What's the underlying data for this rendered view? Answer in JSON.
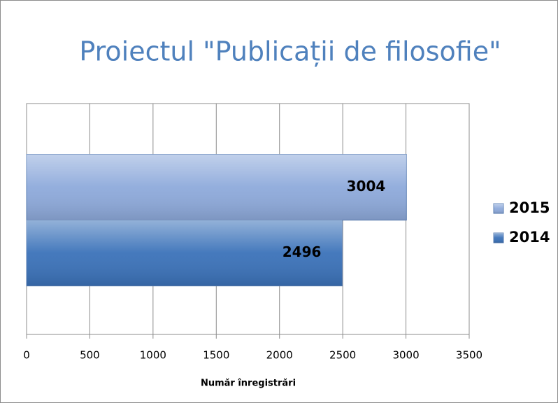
{
  "chart_data": {
    "type": "bar",
    "orientation": "horizontal",
    "title": "Proiectul \"Publicații de filosofie\"",
    "x_label": "Număr înregistrări",
    "categories": [
      null
    ],
    "series": [
      {
        "name": "2015",
        "color": "#8eaadb",
        "values": [
          3004
        ]
      },
      {
        "name": "2014",
        "color": "#3b72b9",
        "values": [
          2496
        ]
      }
    ],
    "xlim": [
      0,
      3500
    ],
    "xticks": [
      0,
      500,
      1000,
      1500,
      2000,
      2500,
      3000,
      3500
    ],
    "grid": true,
    "legend": "right",
    "title_color": "#4f81bd"
  }
}
